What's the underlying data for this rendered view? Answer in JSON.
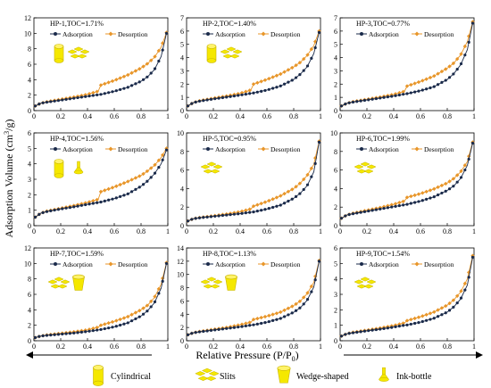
{
  "figure": {
    "ylabel_main": "Adsorption Volume (cm",
    "ylabel_sup": "3",
    "ylabel_tail": "/g)",
    "xlabel_main": "Relative Pressure (P/P",
    "xlabel_sub": "0",
    "xlabel_tail": ")"
  },
  "pore_legend": [
    {
      "label": "Cylindrical",
      "icon": "cylinder-icon"
    },
    {
      "label": "Slits",
      "icon": "slits-icon"
    },
    {
      "label": "Wedge-shaped",
      "icon": "wedge-icon"
    },
    {
      "label": "Ink-bottle",
      "icon": "ink-bottle-icon"
    }
  ],
  "colors": {
    "adsorption": "#1a2a4a",
    "desorption": "#e8962a",
    "pore_fill": "#f5e800",
    "pore_stroke": "#c8b400",
    "axis": "#000000"
  },
  "chart_data": [
    {
      "type": "line",
      "title": "HP-1,TOC=1.71%",
      "xlim": [
        0,
        1
      ],
      "ylim": [
        0,
        12
      ],
      "yticks": [
        0,
        2,
        4,
        6,
        8,
        10,
        12
      ],
      "xticks": [
        0,
        0.2,
        0.4,
        0.6,
        0.8,
        1
      ],
      "legend": "top",
      "series_labels": [
        "Adsorption",
        "Desorption"
      ],
      "icons": [
        "cylinder-icon",
        "slits-icon"
      ],
      "x": [
        0.01,
        0.05,
        0.1,
        0.2,
        0.3,
        0.4,
        0.48,
        0.5,
        0.6,
        0.7,
        0.8,
        0.85,
        0.9,
        0.95,
        0.99
      ],
      "adsorption": [
        0.6,
        0.95,
        1.1,
        1.35,
        1.6,
        1.85,
        2.05,
        2.1,
        2.5,
        3.0,
        3.8,
        4.4,
        5.3,
        7.0,
        10.0
      ],
      "desorption": [
        0.6,
        0.95,
        1.15,
        1.45,
        1.75,
        2.1,
        2.5,
        3.3,
        3.9,
        4.6,
        5.5,
        6.1,
        6.9,
        8.2,
        10.1
      ]
    },
    {
      "type": "line",
      "title": "HP-2,TOC=1.40%",
      "xlim": [
        0,
        1
      ],
      "ylim": [
        0,
        7
      ],
      "yticks": [
        0,
        1,
        2,
        3,
        4,
        5,
        6,
        7
      ],
      "xticks": [
        0,
        0.2,
        0.4,
        0.6,
        0.8,
        1
      ],
      "legend": "top",
      "series_labels": [
        "Adsorption",
        "Desorption"
      ],
      "icons": [
        "cylinder-icon",
        "slits-icon"
      ],
      "x": [
        0.01,
        0.05,
        0.1,
        0.2,
        0.3,
        0.4,
        0.48,
        0.5,
        0.6,
        0.7,
        0.8,
        0.85,
        0.9,
        0.95,
        0.99
      ],
      "adsorption": [
        0.35,
        0.6,
        0.72,
        0.88,
        1.02,
        1.17,
        1.3,
        1.33,
        1.55,
        1.85,
        2.35,
        2.75,
        3.3,
        4.3,
        5.9
      ],
      "desorption": [
        0.35,
        0.6,
        0.75,
        0.93,
        1.1,
        1.3,
        1.55,
        2.0,
        2.35,
        2.75,
        3.3,
        3.65,
        4.15,
        4.9,
        6.0
      ]
    },
    {
      "type": "line",
      "title": "HP-3,TOC=0.77%",
      "xlim": [
        0,
        1
      ],
      "ylim": [
        0,
        7
      ],
      "yticks": [
        0,
        1,
        2,
        3,
        4,
        5,
        6,
        7
      ],
      "xticks": [
        0,
        0.2,
        0.4,
        0.6,
        0.8,
        1
      ],
      "legend": "top",
      "series_labels": [
        "Adsorption",
        "Desorption"
      ],
      "icons": [],
      "x": [
        0.01,
        0.05,
        0.1,
        0.2,
        0.3,
        0.4,
        0.48,
        0.5,
        0.6,
        0.7,
        0.8,
        0.85,
        0.9,
        0.95,
        0.99
      ],
      "adsorption": [
        0.35,
        0.55,
        0.65,
        0.8,
        0.95,
        1.1,
        1.25,
        1.28,
        1.5,
        1.8,
        2.35,
        2.8,
        3.45,
        4.6,
        6.6
      ],
      "desorption": [
        0.35,
        0.55,
        0.68,
        0.85,
        1.02,
        1.22,
        1.45,
        1.85,
        2.2,
        2.6,
        3.2,
        3.6,
        4.2,
        5.2,
        6.7
      ]
    },
    {
      "type": "line",
      "title": "HP-4,TOC=1.56%",
      "xlim": [
        0,
        1
      ],
      "ylim": [
        0,
        6
      ],
      "yticks": [
        0,
        1,
        2,
        3,
        4,
        5,
        6
      ],
      "xticks": [
        0,
        0.2,
        0.4,
        0.6,
        0.8,
        1
      ],
      "legend": "top",
      "series_labels": [
        "Adsorption",
        "Desorption"
      ],
      "icons": [
        "cylinder-icon",
        "ink-bottle-icon"
      ],
      "x": [
        0.01,
        0.05,
        0.1,
        0.2,
        0.3,
        0.4,
        0.48,
        0.5,
        0.6,
        0.7,
        0.8,
        0.85,
        0.9,
        0.95,
        0.99
      ],
      "adsorption": [
        0.55,
        0.8,
        0.92,
        1.08,
        1.22,
        1.38,
        1.5,
        1.53,
        1.75,
        2.05,
        2.55,
        2.9,
        3.35,
        4.0,
        4.9
      ],
      "desorption": [
        0.55,
        0.8,
        0.95,
        1.12,
        1.3,
        1.5,
        1.7,
        2.2,
        2.5,
        2.85,
        3.25,
        3.55,
        3.9,
        4.4,
        5.0
      ]
    },
    {
      "type": "line",
      "title": "HP-5,TOC=0.95%",
      "xlim": [
        0,
        1
      ],
      "ylim": [
        0,
        10
      ],
      "yticks": [
        0,
        2,
        4,
        6,
        8,
        10
      ],
      "xticks": [
        0,
        0.2,
        0.4,
        0.6,
        0.8,
        1
      ],
      "legend": "top",
      "series_labels": [
        "Adsorption",
        "Desorption"
      ],
      "icons": [
        "slits-icon"
      ],
      "x": [
        0.01,
        0.05,
        0.1,
        0.2,
        0.3,
        0.4,
        0.48,
        0.5,
        0.6,
        0.7,
        0.8,
        0.85,
        0.9,
        0.95,
        0.99
      ],
      "adsorption": [
        0.5,
        0.75,
        0.85,
        1.0,
        1.15,
        1.3,
        1.45,
        1.48,
        1.8,
        2.2,
        2.95,
        3.5,
        4.3,
        5.8,
        9.0
      ],
      "desorption": [
        0.5,
        0.75,
        0.88,
        1.05,
        1.25,
        1.5,
        1.8,
        2.1,
        2.6,
        3.2,
        4.0,
        4.6,
        5.4,
        6.6,
        9.1
      ]
    },
    {
      "type": "line",
      "title": "HP-6,TOC=1.99%",
      "xlim": [
        0,
        1
      ],
      "ylim": [
        0,
        10
      ],
      "yticks": [
        0,
        2,
        4,
        6,
        8,
        10
      ],
      "xticks": [
        0,
        0.2,
        0.4,
        0.6,
        0.8,
        1
      ],
      "legend": "top",
      "series_labels": [
        "Adsorption",
        "Desorption"
      ],
      "icons": [
        "slits-icon"
      ],
      "x": [
        0.01,
        0.05,
        0.1,
        0.2,
        0.3,
        0.4,
        0.48,
        0.5,
        0.6,
        0.7,
        0.8,
        0.85,
        0.9,
        0.95,
        0.99
      ],
      "adsorption": [
        0.8,
        1.15,
        1.3,
        1.55,
        1.8,
        2.05,
        2.25,
        2.3,
        2.65,
        3.1,
        3.8,
        4.3,
        5.1,
        6.5,
        8.9
      ],
      "desorption": [
        0.8,
        1.15,
        1.35,
        1.65,
        1.95,
        2.3,
        2.65,
        3.05,
        3.45,
        3.95,
        4.6,
        5.1,
        5.8,
        6.9,
        9.0
      ]
    },
    {
      "type": "line",
      "title": "HP-7,TOC=1.59%",
      "xlim": [
        0,
        1
      ],
      "ylim": [
        0,
        12
      ],
      "yticks": [
        0,
        2,
        4,
        6,
        8,
        10,
        12
      ],
      "xticks": [
        0,
        0.2,
        0.4,
        0.6,
        0.8,
        1
      ],
      "legend": "top",
      "series_labels": [
        "Adsorption",
        "Desorption"
      ],
      "icons": [
        "slits-icon",
        "wedge-icon"
      ],
      "x": [
        0.01,
        0.05,
        0.1,
        0.2,
        0.3,
        0.4,
        0.48,
        0.5,
        0.6,
        0.7,
        0.8,
        0.85,
        0.9,
        0.95,
        0.99
      ],
      "adsorption": [
        0.4,
        0.6,
        0.7,
        0.85,
        1.0,
        1.2,
        1.4,
        1.45,
        1.8,
        2.3,
        3.2,
        3.9,
        4.9,
        6.8,
        10.0
      ],
      "desorption": [
        0.4,
        0.6,
        0.75,
        0.95,
        1.15,
        1.4,
        1.75,
        2.0,
        2.5,
        3.1,
        4.0,
        4.6,
        5.6,
        7.3,
        10.1
      ]
    },
    {
      "type": "line",
      "title": "HP-8,TOC=1.13%",
      "xlim": [
        0,
        1
      ],
      "ylim": [
        0,
        14
      ],
      "yticks": [
        0,
        2,
        4,
        6,
        8,
        10,
        12,
        14
      ],
      "xticks": [
        0,
        0.2,
        0.4,
        0.6,
        0.8,
        1
      ],
      "legend": "top",
      "series_labels": [
        "Adsorption",
        "Desorption"
      ],
      "icons": [
        "slits-icon",
        "wedge-icon"
      ],
      "x": [
        0.01,
        0.05,
        0.1,
        0.2,
        0.3,
        0.4,
        0.48,
        0.5,
        0.6,
        0.7,
        0.8,
        0.85,
        0.9,
        0.95,
        0.99
      ],
      "adsorption": [
        0.9,
        1.2,
        1.35,
        1.6,
        1.85,
        2.1,
        2.35,
        2.4,
        2.8,
        3.35,
        4.3,
        5.0,
        6.1,
        8.1,
        12.0
      ],
      "desorption": [
        0.9,
        1.2,
        1.4,
        1.7,
        2.0,
        2.4,
        2.8,
        3.2,
        3.7,
        4.3,
        5.3,
        6.0,
        7.1,
        8.8,
        12.1
      ]
    },
    {
      "type": "line",
      "title": "HP-9,TOC=1.54%",
      "xlim": [
        0,
        1
      ],
      "ylim": [
        0,
        6
      ],
      "yticks": [
        0,
        1,
        2,
        3,
        4,
        5,
        6
      ],
      "xticks": [
        0,
        0.2,
        0.4,
        0.6,
        0.8,
        1
      ],
      "legend": "top",
      "series_labels": [
        "Adsorption",
        "Desorption"
      ],
      "icons": [
        "slits-icon"
      ],
      "x": [
        0.01,
        0.05,
        0.1,
        0.2,
        0.3,
        0.4,
        0.48,
        0.5,
        0.6,
        0.7,
        0.8,
        0.85,
        0.9,
        0.95,
        0.99
      ],
      "adsorption": [
        0.3,
        0.45,
        0.52,
        0.64,
        0.75,
        0.88,
        1.0,
        1.02,
        1.2,
        1.45,
        1.85,
        2.2,
        2.7,
        3.6,
        5.4
      ],
      "desorption": [
        0.3,
        0.45,
        0.55,
        0.68,
        0.82,
        0.98,
        1.15,
        1.3,
        1.55,
        1.85,
        2.3,
        2.65,
        3.15,
        4.0,
        5.5
      ]
    }
  ]
}
